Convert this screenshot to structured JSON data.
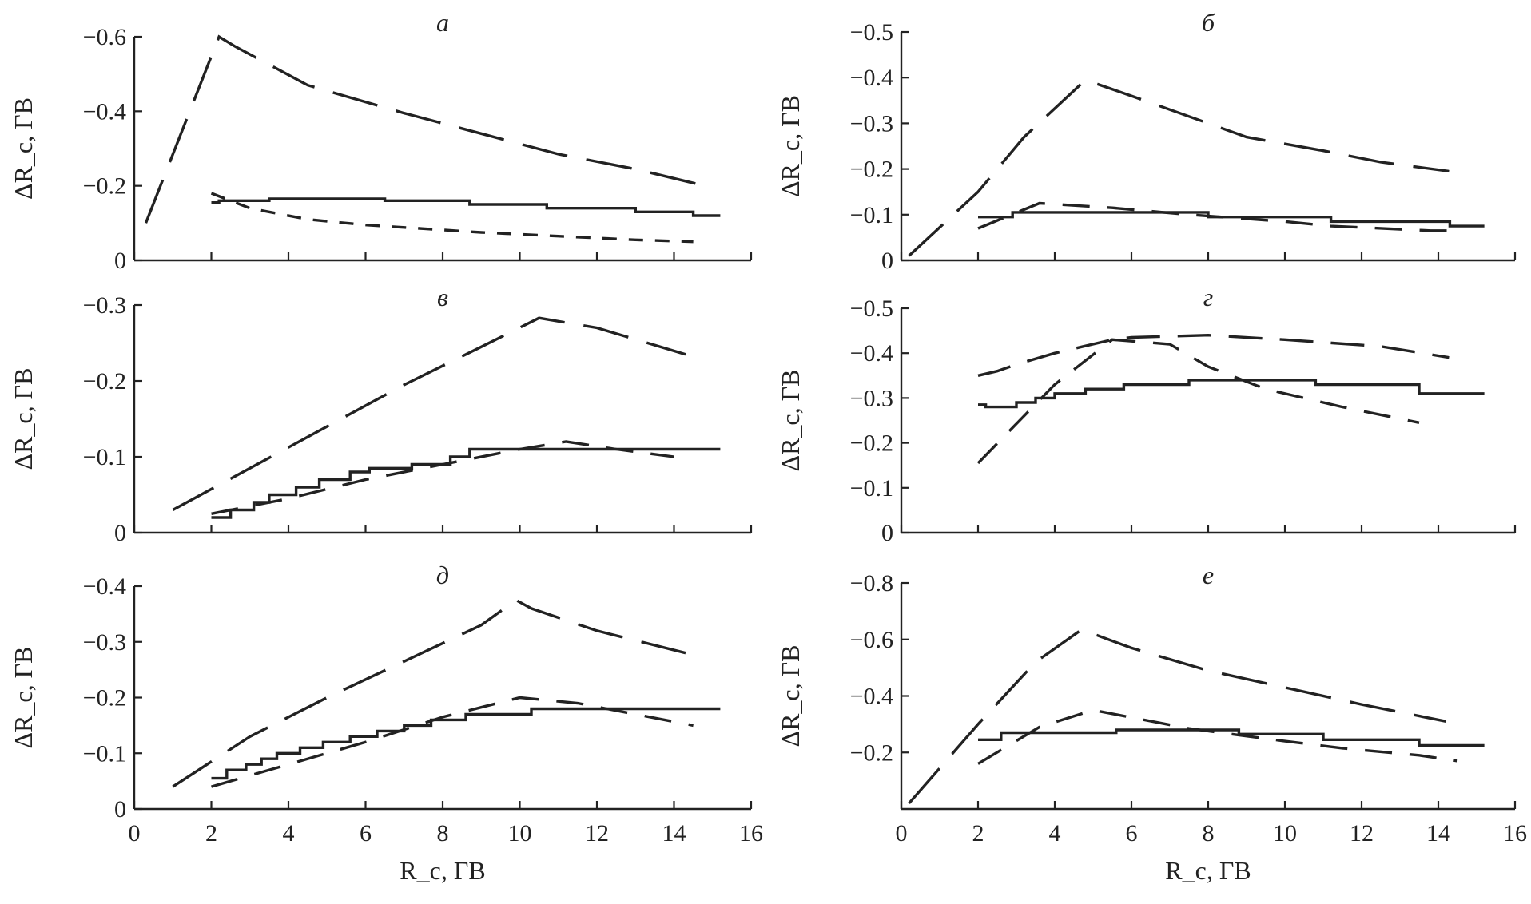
{
  "chart_data": [
    {
      "type": "line",
      "panel": "top-left",
      "title": "а",
      "xlabel": "R_c, ГВ",
      "ylabel": "ΔR_c, ГВ",
      "xlim": [
        0,
        16
      ],
      "ylim": [
        0,
        -0.6
      ],
      "xticks": [
        0,
        2,
        4,
        6,
        8,
        10,
        12,
        14,
        16
      ],
      "yticks": [
        0,
        -0.2,
        -0.4,
        -0.6
      ],
      "ytick_labels": [
        "0",
        "−0.2",
        "−0.4",
        "−0.6"
      ],
      "series": [
        {
          "name": "long-dash",
          "x": [
            0.3,
            2.2,
            2.6,
            4.5,
            7,
            9,
            11,
            13,
            14.6
          ],
          "values": [
            -0.1,
            -0.6,
            -0.575,
            -0.47,
            -0.395,
            -0.34,
            -0.285,
            -0.245,
            -0.205
          ]
        },
        {
          "name": "solid",
          "x": [
            2,
            2.2,
            2.2,
            3.5,
            3.5,
            6.5,
            6.5,
            8.7,
            8.7,
            10.7,
            10.7,
            13,
            13,
            14.5,
            14.5,
            15.2
          ],
          "values": [
            -0.155,
            -0.155,
            -0.16,
            -0.16,
            -0.165,
            -0.165,
            -0.16,
            -0.16,
            -0.15,
            -0.15,
            -0.14,
            -0.14,
            -0.13,
            -0.13,
            -0.12,
            -0.12
          ]
        },
        {
          "name": "short-dash",
          "x": [
            2,
            3,
            4.5,
            6,
            7.5,
            9,
            11,
            13,
            14.5
          ],
          "values": [
            -0.18,
            -0.14,
            -0.11,
            -0.095,
            -0.085,
            -0.075,
            -0.065,
            -0.055,
            -0.05
          ]
        }
      ]
    },
    {
      "type": "line",
      "panel": "top-right",
      "title": "б",
      "xlabel": "R_c, ГВ",
      "ylabel": "ΔR_c, ГВ",
      "xlim": [
        0,
        16
      ],
      "ylim": [
        0,
        -0.5
      ],
      "xticks": [
        0,
        2,
        4,
        6,
        8,
        10,
        12,
        14,
        16
      ],
      "yticks": [
        0,
        -0.1,
        -0.2,
        -0.3,
        -0.4,
        -0.5
      ],
      "ytick_labels": [
        "0",
        "−0.1",
        "−0.2",
        "−0.3",
        "−0.4",
        "−0.5"
      ],
      "series": [
        {
          "name": "long-dash",
          "x": [
            0.2,
            2,
            3.2,
            4.8,
            6,
            7.5,
            9,
            11,
            12.5,
            14.3
          ],
          "values": [
            -0.01,
            -0.15,
            -0.27,
            -0.395,
            -0.36,
            -0.315,
            -0.27,
            -0.24,
            -0.215,
            -0.195
          ]
        },
        {
          "name": "solid",
          "x": [
            2,
            2.9,
            2.9,
            8,
            8,
            11.2,
            11.2,
            14.3,
            14.3,
            15.2
          ],
          "values": [
            -0.095,
            -0.095,
            -0.105,
            -0.105,
            -0.095,
            -0.095,
            -0.085,
            -0.085,
            -0.075,
            -0.075
          ]
        },
        {
          "name": "medium-dash",
          "x": [
            2,
            3.6,
            5.5,
            7.5,
            10,
            11.2,
            13.8,
            14.4
          ],
          "values": [
            -0.07,
            -0.125,
            -0.115,
            -0.1,
            -0.085,
            -0.075,
            -0.065,
            -0.065
          ]
        }
      ]
    },
    {
      "type": "line",
      "panel": "middle-left",
      "title": "в",
      "xlabel": "R_c, ГВ",
      "ylabel": "ΔR_c, ГВ",
      "xlim": [
        0,
        16
      ],
      "ylim": [
        0,
        -0.3
      ],
      "xticks": [
        0,
        2,
        4,
        6,
        8,
        10,
        12,
        14,
        16
      ],
      "yticks": [
        0,
        -0.1,
        -0.2,
        -0.3
      ],
      "ytick_labels": [
        "0",
        "−0.1",
        "−0.2",
        "−0.3"
      ],
      "series": [
        {
          "name": "long-dash",
          "x": [
            1,
            3,
            5,
            7,
            9,
            10.5,
            12,
            14.3
          ],
          "values": [
            -0.03,
            -0.085,
            -0.14,
            -0.195,
            -0.245,
            -0.283,
            -0.27,
            -0.235
          ]
        },
        {
          "name": "solid",
          "x": [
            2,
            2.5,
            2.5,
            3.1,
            3.1,
            3.5,
            3.5,
            4.2,
            4.2,
            4.8,
            4.8,
            5.6,
            5.6,
            6.1,
            6.1,
            7.2,
            7.2,
            8.2,
            8.2,
            8.7,
            8.7,
            11.2,
            11.2,
            15.2
          ],
          "values": [
            -0.02,
            -0.02,
            -0.03,
            -0.03,
            -0.04,
            -0.04,
            -0.05,
            -0.05,
            -0.06,
            -0.06,
            -0.07,
            -0.07,
            -0.08,
            -0.08,
            -0.085,
            -0.085,
            -0.09,
            -0.09,
            -0.1,
            -0.1,
            -0.11,
            -0.11,
            -0.11,
            -0.11
          ]
        },
        {
          "name": "medium-dash",
          "x": [
            2,
            4,
            6,
            8,
            10,
            11.2,
            12.5,
            14
          ],
          "values": [
            -0.025,
            -0.045,
            -0.07,
            -0.09,
            -0.11,
            -0.12,
            -0.11,
            -0.1
          ]
        }
      ]
    },
    {
      "type": "line",
      "panel": "middle-right",
      "title": "г",
      "xlabel": "R_c, ГВ",
      "ylabel": "ΔR_c, ГВ",
      "xlim": [
        0,
        16
      ],
      "ylim": [
        0,
        -0.5
      ],
      "xticks": [
        0,
        2,
        4,
        6,
        8,
        10,
        12,
        14,
        16
      ],
      "yticks": [
        0,
        -0.1,
        -0.2,
        -0.3,
        -0.4,
        -0.5
      ],
      "ytick_labels": [
        "0",
        "−0.1",
        "−0.2",
        "−0.3",
        "−0.4",
        "−0.5"
      ],
      "series": [
        {
          "name": "dash-upper",
          "x": [
            2,
            2.5,
            3,
            4,
            5.5,
            6,
            8,
            10,
            12.5,
            14.3
          ],
          "values": [
            -0.35,
            -0.36,
            -0.375,
            -0.4,
            -0.43,
            -0.435,
            -0.44,
            -0.43,
            -0.415,
            -0.39
          ]
        },
        {
          "name": "solid",
          "x": [
            2,
            2.2,
            2.2,
            3,
            3,
            3.5,
            3.5,
            4,
            4,
            4.8,
            4.8,
            5.8,
            5.8,
            7.5,
            7.5,
            10.8,
            10.8,
            13.5,
            13.5,
            15.2
          ],
          "values": [
            -0.285,
            -0.285,
            -0.28,
            -0.28,
            -0.29,
            -0.29,
            -0.3,
            -0.3,
            -0.31,
            -0.31,
            -0.32,
            -0.32,
            -0.33,
            -0.33,
            -0.34,
            -0.34,
            -0.33,
            -0.33,
            -0.31,
            -0.31
          ]
        },
        {
          "name": "medium-dash",
          "x": [
            2,
            4,
            5.5,
            7,
            8,
            9.5,
            11.5,
            13.5
          ],
          "values": [
            -0.155,
            -0.33,
            -0.43,
            -0.42,
            -0.37,
            -0.32,
            -0.28,
            -0.245
          ]
        }
      ]
    },
    {
      "type": "line",
      "panel": "bottom-left",
      "title": "д",
      "xlabel": "R_c, ГВ",
      "ylabel": "ΔR_c, ГВ",
      "xlim": [
        0,
        16
      ],
      "ylim": [
        0,
        -0.4
      ],
      "xticks": [
        0,
        2,
        4,
        6,
        8,
        10,
        12,
        14,
        16
      ],
      "yticks": [
        0,
        -0.1,
        -0.2,
        -0.3,
        -0.4
      ],
      "ytick_labels": [
        "0",
        "−0.1",
        "−0.2",
        "−0.3",
        "−0.4"
      ],
      "series": [
        {
          "name": "long-dash",
          "x": [
            1,
            3,
            5,
            7,
            9,
            9.9,
            10.3,
            12,
            14.3
          ],
          "values": [
            -0.04,
            -0.13,
            -0.2,
            -0.265,
            -0.33,
            -0.375,
            -0.36,
            -0.32,
            -0.28
          ]
        },
        {
          "name": "solid",
          "x": [
            2,
            2.4,
            2.4,
            2.9,
            2.9,
            3.3,
            3.3,
            3.7,
            3.7,
            4.3,
            4.3,
            4.9,
            4.9,
            5.6,
            5.6,
            6.3,
            6.3,
            7,
            7,
            7.7,
            7.7,
            8.6,
            8.6,
            10.3,
            10.3,
            15.2
          ],
          "values": [
            -0.055,
            -0.055,
            -0.07,
            -0.07,
            -0.08,
            -0.08,
            -0.09,
            -0.09,
            -0.1,
            -0.1,
            -0.11,
            -0.11,
            -0.12,
            -0.12,
            -0.13,
            -0.13,
            -0.14,
            -0.14,
            -0.15,
            -0.15,
            -0.16,
            -0.16,
            -0.17,
            -0.17,
            -0.18,
            -0.18
          ]
        },
        {
          "name": "medium-dash",
          "x": [
            2,
            4,
            6,
            8,
            10,
            11.5,
            13,
            14.5
          ],
          "values": [
            -0.04,
            -0.08,
            -0.12,
            -0.165,
            -0.2,
            -0.19,
            -0.17,
            -0.15
          ]
        }
      ]
    },
    {
      "type": "line",
      "panel": "bottom-right",
      "title": "е",
      "xlabel": "R_c, ГВ",
      "ylabel": "ΔR_c, ГВ",
      "xlim": [
        0,
        16
      ],
      "ylim": [
        0,
        -0.8
      ],
      "xticks": [
        0,
        2,
        4,
        6,
        8,
        10,
        12,
        14,
        16
      ],
      "yticks": [
        -0.2,
        -0.4,
        -0.6,
        -0.8
      ],
      "ytick_labels": [
        "−0.2",
        "−0.4",
        "−0.6",
        "−0.8"
      ],
      "series": [
        {
          "name": "long-dash",
          "x": [
            0.2,
            2,
            3.5,
            4.7,
            6,
            8,
            10,
            12,
            14.2
          ],
          "values": [
            -0.02,
            -0.3,
            -0.52,
            -0.635,
            -0.57,
            -0.49,
            -0.43,
            -0.37,
            -0.31
          ]
        },
        {
          "name": "solid",
          "x": [
            2,
            2.6,
            2.6,
            5.6,
            5.6,
            8.8,
            8.8,
            11,
            11,
            13.5,
            13.5,
            15.2
          ],
          "values": [
            -0.245,
            -0.245,
            -0.27,
            -0.27,
            -0.28,
            -0.28,
            -0.265,
            -0.265,
            -0.245,
            -0.245,
            -0.225,
            -0.225
          ]
        },
        {
          "name": "medium-dash",
          "x": [
            2,
            3.6,
            5,
            7.5,
            10,
            11.5,
            13.5,
            14.5
          ],
          "values": [
            -0.16,
            -0.29,
            -0.35,
            -0.285,
            -0.24,
            -0.215,
            -0.19,
            -0.17
          ]
        }
      ]
    }
  ]
}
